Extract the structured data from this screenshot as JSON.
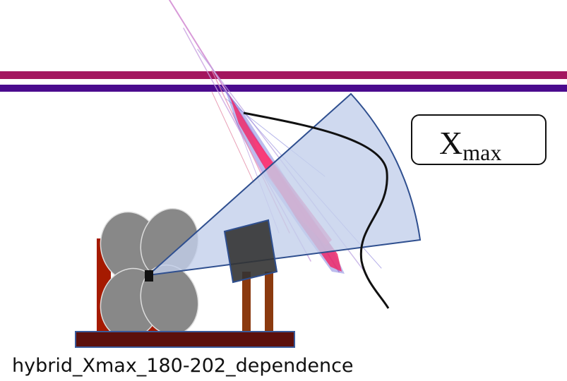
{
  "xmax_label": {
    "base": "X",
    "subscript": "max"
  },
  "caption": "hybrid_Xmax_180-202_dependence"
}
